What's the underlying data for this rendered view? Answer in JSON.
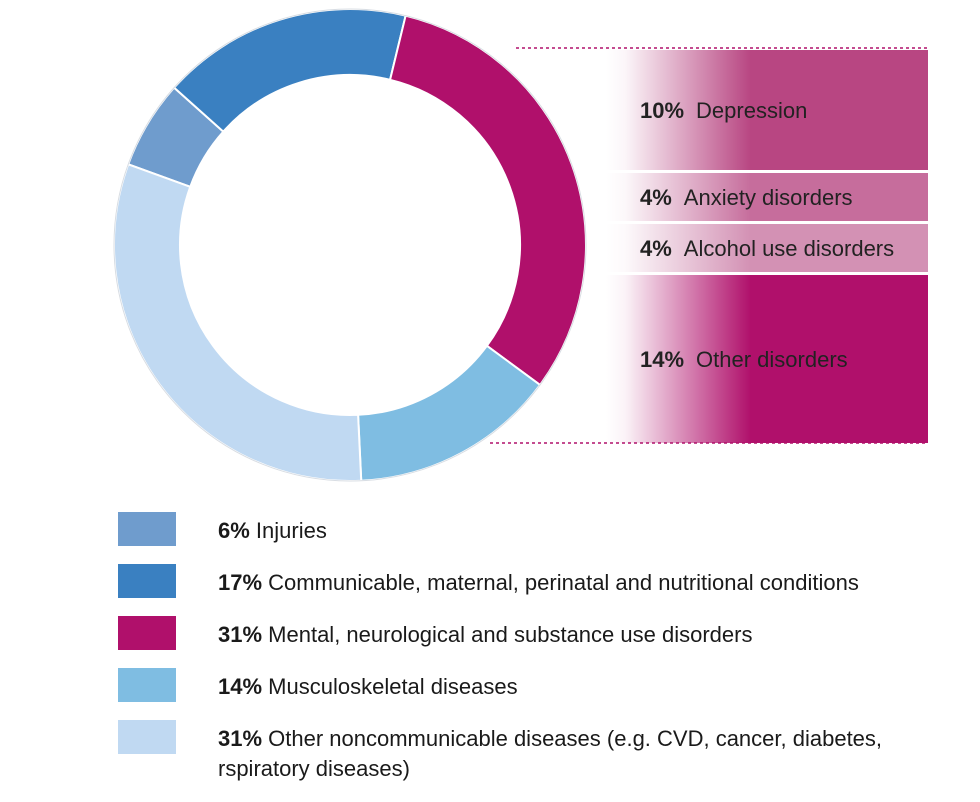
{
  "chart_data": {
    "type": "pie",
    "donut": true,
    "slices": [
      {
        "label": "Injuries",
        "value": 6,
        "display": "6%",
        "color": "#6f9ccd"
      },
      {
        "label": "Communicable, maternal, perinatal and nutritional conditions",
        "value": 17,
        "display": "17%",
        "color": "#3a80c1"
      },
      {
        "label": "Mental, neurological and substance use disorders",
        "value": 31,
        "display": "31%",
        "color": "#b0106b"
      },
      {
        "label": "Musculoskeletal diseases",
        "value": 14,
        "display": "14%",
        "color": "#7fbde2"
      },
      {
        "label": "Other noncommunicable diseases (e.g. CVD, cancer, diabetes, rspiratory diseases)",
        "value": 31,
        "display": "31%",
        "color": "#c0d9f2"
      }
    ],
    "breakdown": {
      "parent": "Mental, neurological and substance use disorders",
      "items": [
        {
          "label": "Depression",
          "value": 10,
          "display": "10%",
          "color": "#b84682"
        },
        {
          "label": "Anxiety disorders",
          "value": 4,
          "display": "4%",
          "color": "#c66d9c"
        },
        {
          "label": "Alcohol use disorders",
          "value": 4,
          "display": "4%",
          "color": "#d391b4"
        },
        {
          "label": "Other disorders",
          "value": 14,
          "display": "14%",
          "color": "#b0106b"
        }
      ]
    },
    "legend_placement": "bottom"
  }
}
